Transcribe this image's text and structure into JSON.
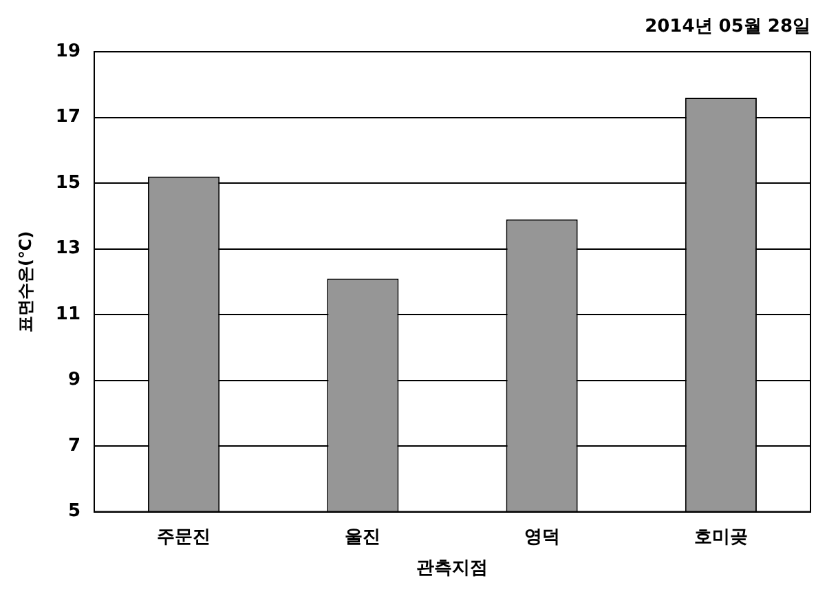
{
  "chart_data": {
    "type": "bar",
    "subtitle": "2014년 05월 28일",
    "xlabel": "관측지점",
    "ylabel": "표면수온(℃)",
    "categories": [
      "주문진",
      "울진",
      "영덕",
      "호미곶"
    ],
    "values": [
      15.2,
      12.1,
      13.9,
      17.6
    ],
    "color": "#969696",
    "ylim": [
      5,
      19
    ],
    "yticks": [
      5,
      7,
      9,
      11,
      13,
      15,
      17,
      19
    ],
    "grid": "y",
    "legend": false
  }
}
